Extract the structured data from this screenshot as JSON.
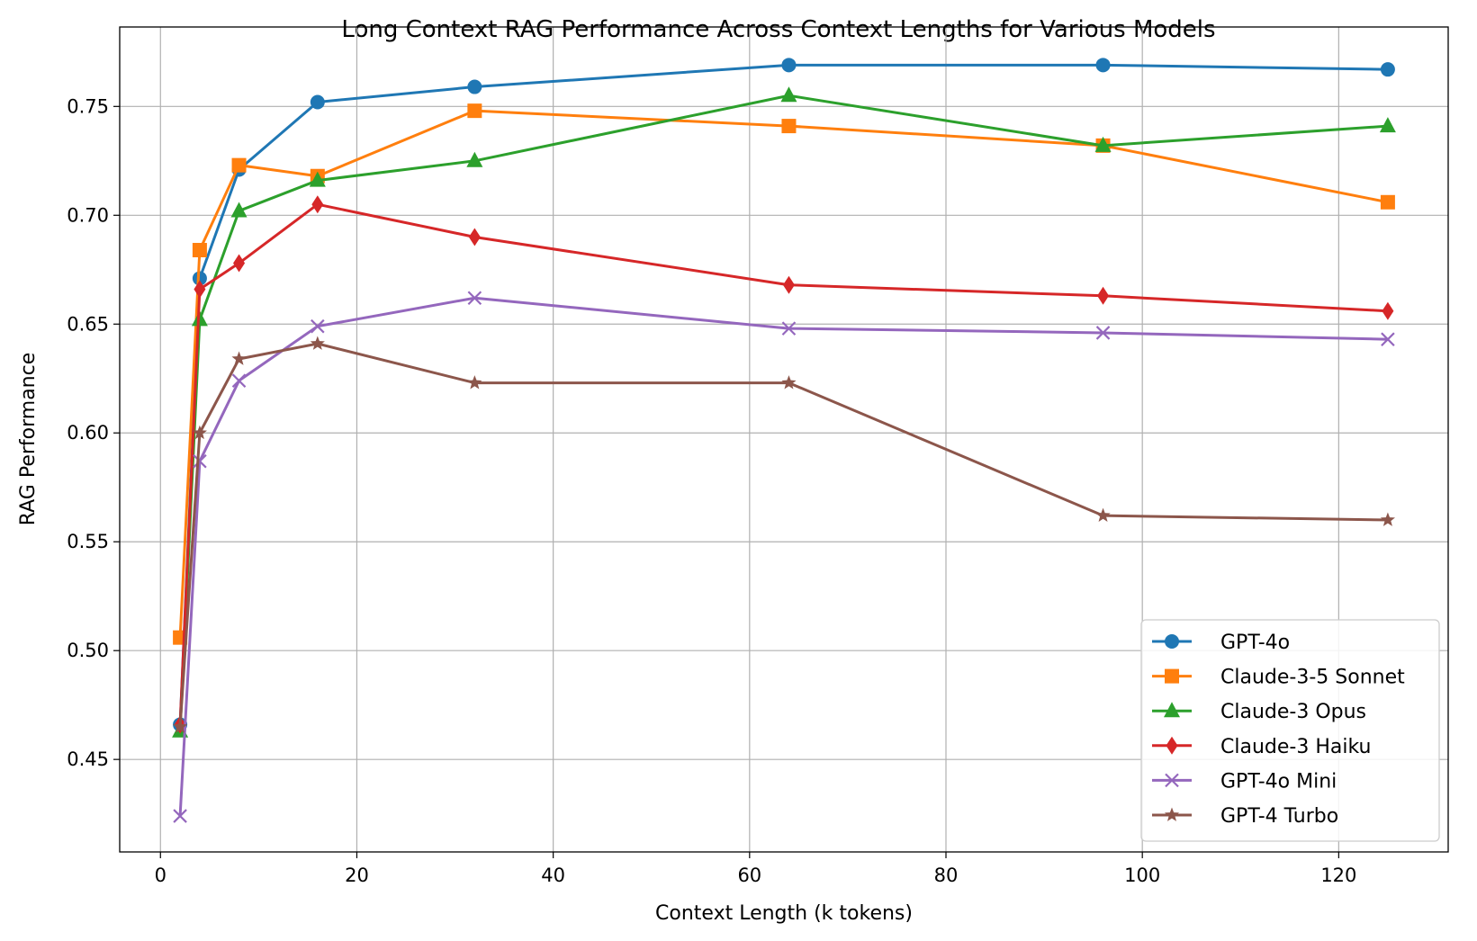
{
  "chart_data": {
    "type": "line",
    "title": "Long Context RAG Performance Across Context Lengths for Various Models",
    "xlabel": "Context Length (k tokens)",
    "ylabel": "RAG Performance",
    "xlim": [
      -4.15,
      131.15
    ],
    "ylim": [
      0.4075,
      0.7865
    ],
    "xticks": [
      0,
      20,
      40,
      60,
      80,
      100,
      120
    ],
    "yticks": [
      0.45,
      0.5,
      0.55,
      0.6,
      0.65,
      0.7,
      0.75
    ],
    "xtick_labels": [
      "0",
      "20",
      "40",
      "60",
      "80",
      "100",
      "120"
    ],
    "ytick_labels": [
      "0.45",
      "0.50",
      "0.55",
      "0.60",
      "0.65",
      "0.70",
      "0.75"
    ],
    "grid": true,
    "legend_position": "lower-right",
    "x": [
      2,
      4,
      8,
      16,
      32,
      64,
      96,
      125
    ],
    "series": [
      {
        "name": "GPT-4o",
        "color": "#1f77b4",
        "marker": "circle",
        "values": [
          0.466,
          0.671,
          0.721,
          0.752,
          0.759,
          0.769,
          0.769,
          0.767
        ]
      },
      {
        "name": "Claude-3-5 Sonnet",
        "color": "#ff7f0e",
        "marker": "square",
        "values": [
          0.506,
          0.684,
          0.723,
          0.718,
          0.748,
          0.741,
          0.732,
          0.706
        ]
      },
      {
        "name": "Claude-3 Opus",
        "color": "#2ca02c",
        "marker": "triangle",
        "values": [
          0.463,
          0.652,
          0.702,
          0.716,
          0.725,
          0.755,
          0.732,
          0.741
        ]
      },
      {
        "name": "Claude-3 Haiku",
        "color": "#d62728",
        "marker": "diamond",
        "values": [
          0.466,
          0.666,
          0.678,
          0.705,
          0.69,
          0.668,
          0.663,
          0.656
        ]
      },
      {
        "name": "GPT-4o Mini",
        "color": "#9467bd",
        "marker": "x",
        "values": [
          0.424,
          0.587,
          0.624,
          0.649,
          0.662,
          0.648,
          0.646,
          0.643
        ]
      },
      {
        "name": "GPT-4 Turbo",
        "color": "#8c564b",
        "marker": "star",
        "values": [
          0.465,
          0.6,
          0.634,
          0.641,
          0.623,
          0.623,
          0.562,
          0.56
        ]
      }
    ]
  }
}
